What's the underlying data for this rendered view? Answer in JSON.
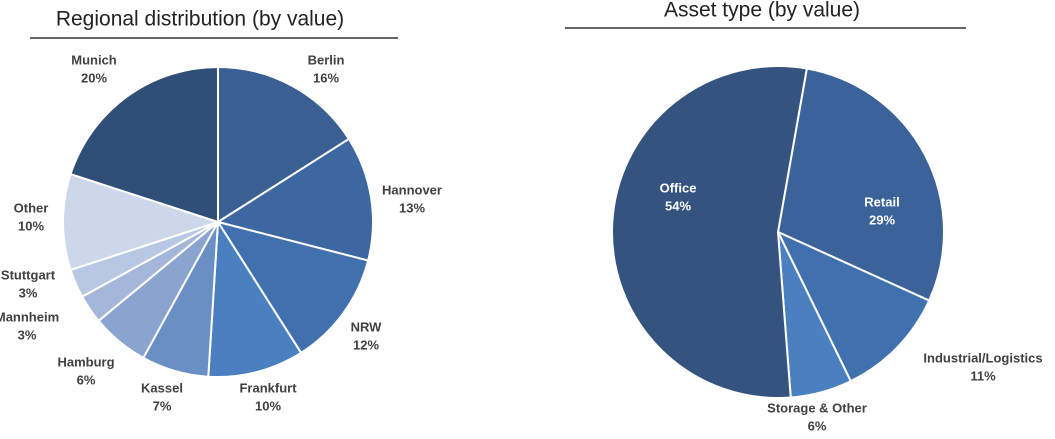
{
  "chart_data": [
    {
      "type": "pie",
      "title": "Regional distribution (by value)",
      "categories": [
        "Berlin",
        "Hannover",
        "NRW",
        "Frankfurt",
        "Kassel",
        "Hamburg",
        "Mannheim",
        "Stuttgart",
        "Other",
        "Munich"
      ],
      "values": [
        16,
        13,
        12,
        10,
        7,
        6,
        3,
        3,
        10,
        20
      ],
      "value_labels": [
        "16%",
        "13%",
        "12%",
        "10%",
        "7%",
        "6%",
        "3%",
        "3%",
        "10%",
        "20%"
      ],
      "colors": [
        "#3a5f92",
        "#3d67a0",
        "#4170ae",
        "#4a7fc0",
        "#6a8fc4",
        "#8aa3cf",
        "#a4b7da",
        "#b8c8e4",
        "#cdd7ea",
        "#2f4e78"
      ]
    },
    {
      "type": "pie",
      "title": "Asset type (by value)",
      "categories": [
        "Retail",
        "Industrial/Logistics",
        "Storage & Other",
        "Office"
      ],
      "values": [
        29,
        11,
        6,
        54
      ],
      "value_labels": [
        "29%",
        "11%",
        "6%",
        "54%"
      ],
      "colors": [
        "#3c6399",
        "#4170ae",
        "#4a7fc0",
        "#34537f"
      ]
    }
  ]
}
